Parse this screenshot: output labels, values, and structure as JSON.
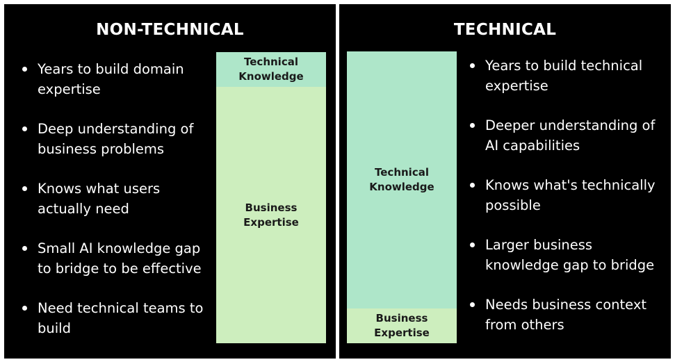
{
  "non_technical": {
    "title": "NON-TECHNICAL",
    "bullets": [
      "Years to build domain expertise",
      "Deep understanding of business problems",
      "Knows what users actually need",
      "Small AI knowledge gap to bridge to be effective",
      "Need technical teams to build"
    ],
    "bar": {
      "top_label": "Technical\nKnowledge",
      "bottom_label": "Business\nExpertise",
      "technical_color": "#aee6c9",
      "business_color": "#cdeebe"
    }
  },
  "technical": {
    "title": "TECHNICAL",
    "bullets": [
      "Years to build technical expertise",
      "Deeper understanding of AI capabilities",
      "Knows what's technically possible",
      "Larger business knowledge gap to bridge",
      "Needs business context from others"
    ],
    "bar": {
      "top_label": "Technical\nKnowledge",
      "bottom_label": "Business\nExpertise",
      "technical_color": "#aee6c9",
      "business_color": "#cdeebe"
    }
  }
}
